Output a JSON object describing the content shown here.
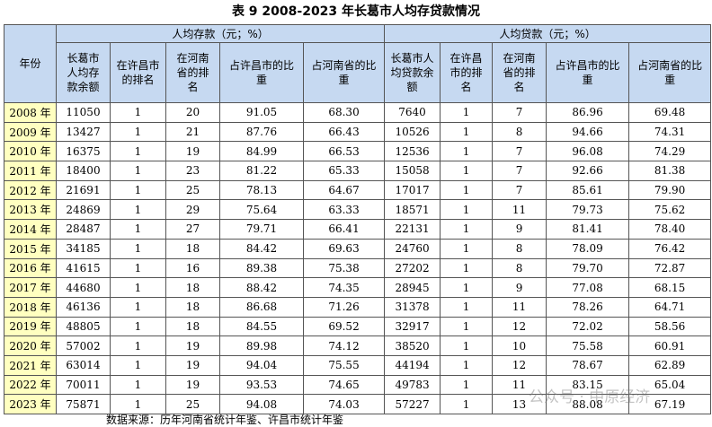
{
  "title": "表 9 2008-2023 年长葛市人均存贷款情况",
  "table": {
    "year_header": "年份",
    "groups": [
      "人均存款（元；%）",
      "人均贷款（元；%）"
    ],
    "columns": [
      "长葛市人均存款余额",
      "在许昌市的排名",
      "在河南省的排名",
      "占许昌市的比重",
      "占河南省的比重",
      "长葛市人均贷款余额",
      "在许昌市的排名",
      "在河南省的排名",
      "占许昌市的比重",
      "占河南省的比重"
    ],
    "rows": [
      [
        "2008 年",
        "11050",
        "1",
        "20",
        "91.05",
        "68.30",
        "7640",
        "1",
        "7",
        "86.96",
        "69.48"
      ],
      [
        "2009 年",
        "13427",
        "1",
        "21",
        "87.76",
        "66.43",
        "10526",
        "1",
        "8",
        "94.66",
        "74.31"
      ],
      [
        "2010 年",
        "16375",
        "1",
        "19",
        "84.99",
        "66.53",
        "12536",
        "1",
        "7",
        "96.08",
        "74.29"
      ],
      [
        "2011 年",
        "18400",
        "1",
        "23",
        "81.22",
        "65.33",
        "15058",
        "1",
        "7",
        "92.66",
        "81.38"
      ],
      [
        "2012 年",
        "21691",
        "1",
        "25",
        "78.13",
        "64.67",
        "17017",
        "1",
        "7",
        "85.61",
        "79.90"
      ],
      [
        "2013 年",
        "24869",
        "1",
        "29",
        "75.64",
        "63.33",
        "18571",
        "1",
        "11",
        "79.73",
        "75.62"
      ],
      [
        "2014 年",
        "28487",
        "1",
        "27",
        "79.71",
        "66.41",
        "22131",
        "1",
        "9",
        "81.41",
        "78.40"
      ],
      [
        "2015 年",
        "34185",
        "1",
        "18",
        "84.42",
        "69.63",
        "24760",
        "1",
        "8",
        "78.09",
        "76.42"
      ],
      [
        "2016 年",
        "41615",
        "1",
        "16",
        "89.38",
        "75.38",
        "27202",
        "1",
        "8",
        "79.70",
        "72.87"
      ],
      [
        "2017 年",
        "44680",
        "1",
        "18",
        "88.42",
        "74.35",
        "28945",
        "1",
        "9",
        "77.08",
        "68.15"
      ],
      [
        "2018 年",
        "46136",
        "1",
        "18",
        "86.68",
        "71.26",
        "31378",
        "1",
        "11",
        "78.26",
        "64.71"
      ],
      [
        "2019 年",
        "48805",
        "1",
        "18",
        "84.55",
        "69.52",
        "32917",
        "1",
        "12",
        "72.02",
        "58.56"
      ],
      [
        "2020 年",
        "57002",
        "1",
        "19",
        "89.98",
        "74.12",
        "38520",
        "1",
        "10",
        "75.58",
        "60.91"
      ],
      [
        "2021 年",
        "63014",
        "1",
        "19",
        "94.04",
        "75.55",
        "44194",
        "1",
        "12",
        "78.67",
        "62.89"
      ],
      [
        "2022 年",
        "70011",
        "1",
        "19",
        "93.53",
        "74.65",
        "49783",
        "1",
        "11",
        "83.15",
        "65.04"
      ],
      [
        "2023 年",
        "75871",
        "1",
        "25",
        "94.08",
        "74.03",
        "57227",
        "1",
        "13",
        "88.08",
        "67.19"
      ]
    ]
  },
  "source": "数据来源：历年河南省统计年鉴、许昌市统计年鉴",
  "watermark": "公众号 · 中原经济"
}
